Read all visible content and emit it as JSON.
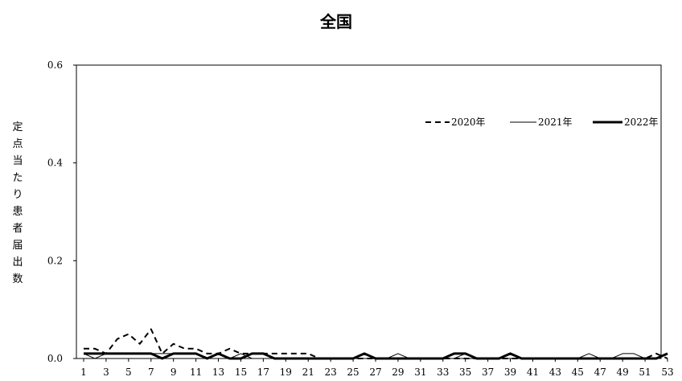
{
  "chart_data": {
    "type": "line",
    "title": "全国",
    "ylabel": "定点当たり患者届出数",
    "xlabel": "",
    "x": [
      1,
      2,
      3,
      4,
      5,
      6,
      7,
      8,
      9,
      10,
      11,
      12,
      13,
      14,
      15,
      16,
      17,
      18,
      19,
      20,
      21,
      22,
      23,
      24,
      25,
      26,
      27,
      28,
      29,
      30,
      31,
      32,
      33,
      34,
      35,
      36,
      37,
      38,
      39,
      40,
      41,
      42,
      43,
      44,
      45,
      46,
      47,
      48,
      49,
      50,
      51,
      52,
      53
    ],
    "x_tick_labels": [
      "1",
      "3",
      "5",
      "7",
      "9",
      "11",
      "13",
      "15",
      "17",
      "19",
      "21",
      "23",
      "25",
      "27",
      "29",
      "31",
      "33",
      "35",
      "37",
      "39",
      "41",
      "43",
      "45",
      "47",
      "49",
      "51",
      "53"
    ],
    "y_tick_labels": [
      "0.0",
      "0.2",
      "0.4",
      "0.6"
    ],
    "ylim": [
      0,
      0.6
    ],
    "grid": false,
    "legend_position": "top-right",
    "series": [
      {
        "name": "2020年",
        "style": "dashed",
        "values": [
          0.02,
          0.02,
          0.01,
          0.04,
          0.05,
          0.03,
          0.06,
          0.01,
          0.03,
          0.02,
          0.02,
          0.01,
          0.01,
          0.02,
          0.01,
          0.01,
          0.01,
          0.01,
          0.01,
          0.01,
          0.01,
          0.0,
          0.0,
          0.0,
          0.0,
          0.0,
          0.0,
          0.0,
          0.0,
          0.0,
          0.0,
          0.0,
          0.0,
          0.0,
          0.0,
          0.0,
          0.0,
          0.0,
          0.0,
          0.0,
          0.0,
          0.0,
          0.0,
          0.0,
          0.0,
          0.0,
          0.0,
          0.0,
          0.0,
          0.0,
          0.0,
          0.01,
          0.0
        ]
      },
      {
        "name": "2021年",
        "style": "thin",
        "values": [
          0.01,
          0.0,
          0.01,
          0.01,
          0.01,
          0.01,
          0.01,
          0.01,
          0.01,
          0.01,
          0.01,
          0.0,
          0.01,
          0.0,
          0.01,
          0.0,
          0.0,
          0.0,
          0.0,
          0.0,
          0.0,
          0.0,
          0.0,
          0.0,
          0.0,
          0.0,
          0.0,
          0.0,
          0.01,
          0.0,
          0.0,
          0.0,
          0.0,
          0.0,
          0.01,
          0.0,
          0.0,
          0.0,
          0.0,
          0.0,
          0.0,
          0.0,
          0.0,
          0.0,
          0.0,
          0.01,
          0.0,
          0.0,
          0.01,
          0.01,
          0.0,
          0.0,
          0.01
        ]
      },
      {
        "name": "2022年",
        "style": "thick",
        "values": [
          0.01,
          0.01,
          0.01,
          0.01,
          0.01,
          0.01,
          0.01,
          0.0,
          0.01,
          0.01,
          0.01,
          0.0,
          0.01,
          0.0,
          0.0,
          0.01,
          0.01,
          0.0,
          0.0,
          0.0,
          0.0,
          0.0,
          0.0,
          0.0,
          0.0,
          0.01,
          0.0,
          0.0,
          0.0,
          0.0,
          0.0,
          0.0,
          0.0,
          0.01,
          0.01,
          0.0,
          0.0,
          0.0,
          0.01,
          0.0,
          0.0,
          0.0,
          0.0,
          0.0,
          0.0,
          0.0,
          0.0,
          0.0,
          0.0,
          0.0,
          0.0,
          0.0,
          0.01
        ]
      }
    ]
  }
}
